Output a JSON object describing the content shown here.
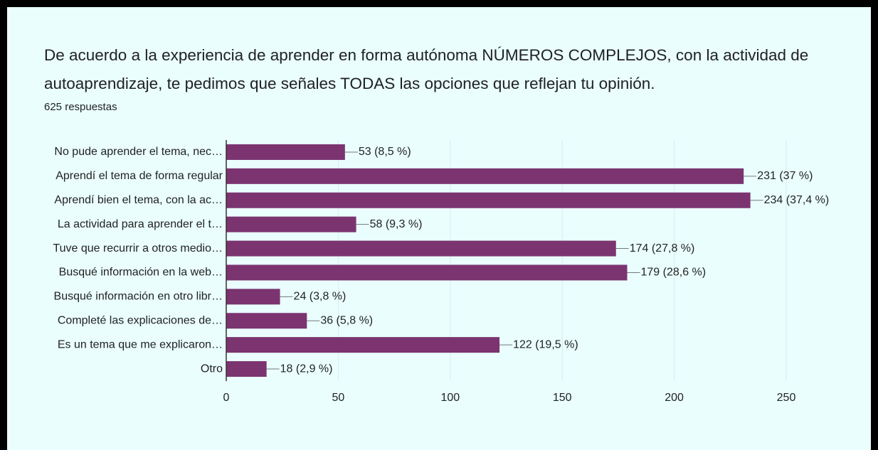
{
  "chart_data": {
    "type": "hbar",
    "title": "De acuerdo a la experiencia de aprender en forma autónoma NÚMEROS COMPLEJOS, con la actividad de autoaprendizaje, te pedimos que señales TODAS las opciones que reflejan tu opinión.",
    "subtitle": "625 respuestas",
    "categories": [
      "No pude aprender el tema, nec…",
      "Aprendí el tema de forma regular",
      "Aprendí bien el tema, con la ac…",
      "La actividad para aprender el t…",
      "Tuve que recurrir a otros medio…",
      "Busqué información en la web…",
      "Busqué información en otro libr…",
      "Completé las explicaciones de…",
      "Es un tema que me explicaron…",
      "Otro"
    ],
    "values": [
      53,
      231,
      234,
      58,
      174,
      179,
      24,
      36,
      122,
      18
    ],
    "value_labels": [
      "53 (8,5 %)",
      "231 (37 %)",
      "234 (37,4 %)",
      "58 (9,3 %)",
      "174 (27,8 %)",
      "179 (28,6 %)",
      "24 (3,8 %)",
      "36 (5,8 %)",
      "122 (19,5 %)",
      "18 (2,9 %)"
    ],
    "color": "#7b3470",
    "xlim": [
      0,
      250
    ],
    "xticks": [
      0,
      50,
      100,
      150,
      200,
      250
    ],
    "grid": true
  }
}
